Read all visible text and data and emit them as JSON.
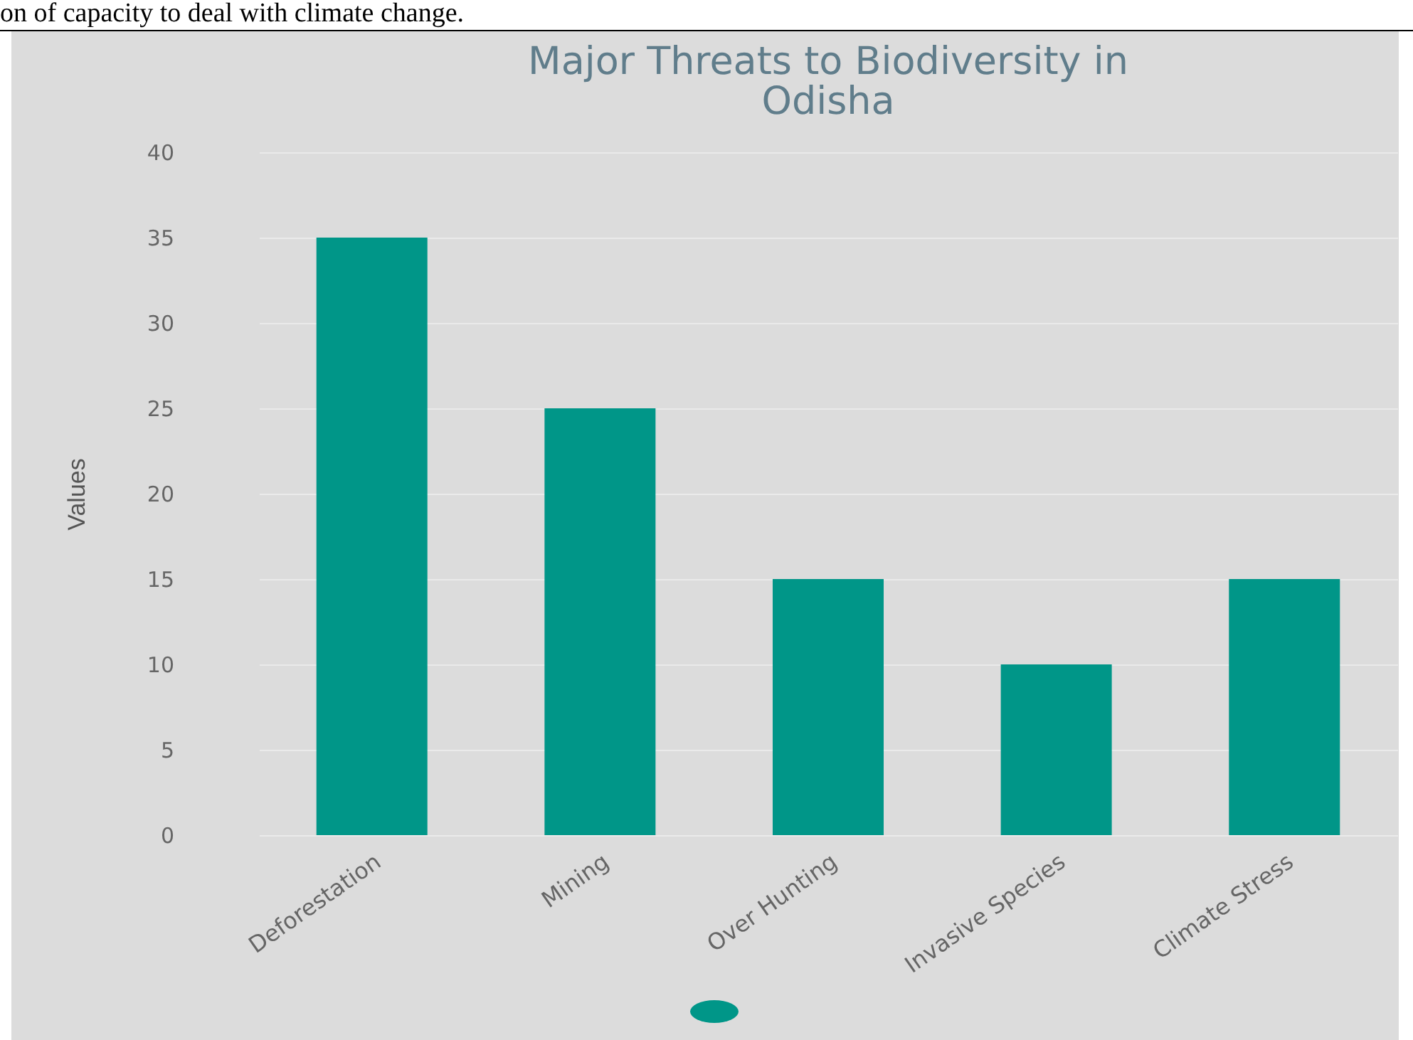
{
  "chart_data": {
    "type": "bar",
    "title": "Major Threats to Biodiversity in Odisha",
    "ylabel": "Values",
    "annotations": [
      "on of capacity to deal with climate change."
    ],
    "categories": [
      "Deforestation",
      "Mining",
      "Over Hunting",
      "Invasive Species",
      "Climate Stress"
    ],
    "values": [
      35,
      25,
      15,
      10,
      15
    ],
    "color": "#009688",
    "ylim": [
      0,
      40
    ],
    "yticks": [
      0,
      5,
      10,
      15,
      20,
      25,
      30,
      35,
      40
    ],
    "grid": "y"
  }
}
